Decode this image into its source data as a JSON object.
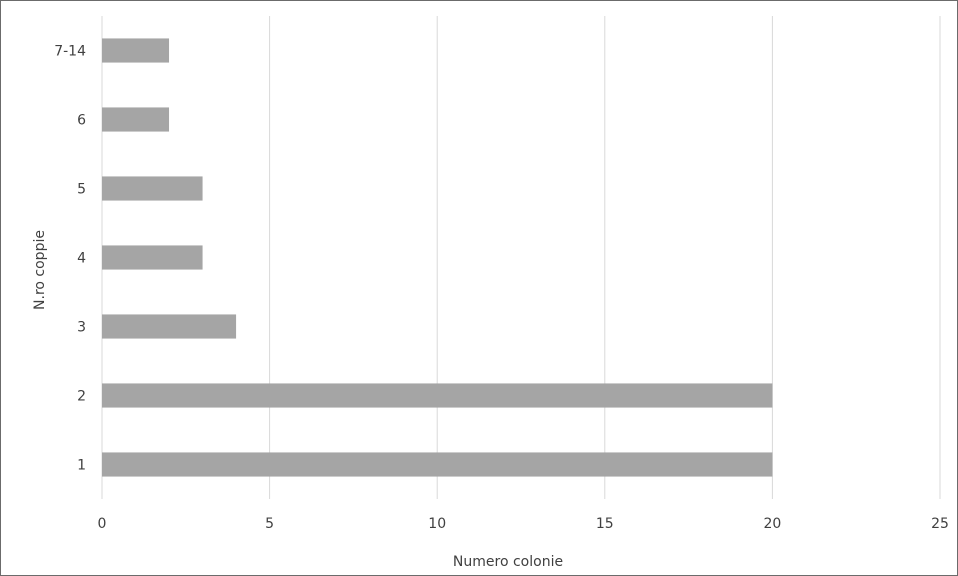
{
  "chart_data": {
    "type": "bar",
    "orientation": "horizontal",
    "categories": [
      "1",
      "2",
      "3",
      "4",
      "5",
      "6",
      "7-14"
    ],
    "values": [
      20,
      20,
      4,
      3,
      3,
      2,
      2
    ],
    "xlabel": "Numero colonie",
    "ylabel": "N.ro coppie",
    "xlim": [
      0,
      25
    ],
    "x_ticks": [
      0,
      5,
      10,
      15,
      20,
      25
    ],
    "grid": "vertical",
    "legend": "none",
    "bar_color": "#a5a5a5",
    "grid_color": "#d9d9d9",
    "text_color": "#404040"
  }
}
